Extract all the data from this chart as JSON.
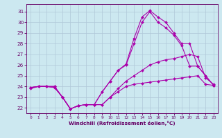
{
  "xlabel": "Windchill (Refroidissement éolien,°C)",
  "background_color": "#cce8f0",
  "grid_color": "#b0c8d8",
  "line_color": "#aa00aa",
  "xlim": [
    -0.5,
    23.5
  ],
  "ylim": [
    21.5,
    31.7
  ],
  "yticks": [
    22,
    23,
    24,
    25,
    26,
    27,
    28,
    29,
    30,
    31
  ],
  "xticks": [
    0,
    1,
    2,
    3,
    4,
    5,
    6,
    7,
    8,
    9,
    10,
    11,
    12,
    13,
    14,
    15,
    16,
    17,
    18,
    19,
    20,
    21,
    22,
    23
  ],
  "series": [
    {
      "x": [
        0,
        1,
        2,
        3,
        4,
        5,
        6,
        7,
        8,
        9,
        10,
        11,
        12,
        13,
        14,
        15,
        16,
        17,
        18,
        19,
        20,
        21,
        22,
        23
      ],
      "y": [
        23.9,
        24.0,
        24.0,
        23.9,
        23.0,
        21.9,
        22.2,
        22.3,
        22.3,
        22.3,
        23.0,
        23.5,
        24.0,
        24.2,
        24.3,
        24.4,
        24.5,
        24.6,
        24.7,
        24.8,
        24.9,
        25.0,
        24.2,
        24.1
      ]
    },
    {
      "x": [
        0,
        1,
        2,
        3,
        4,
        5,
        6,
        7,
        8,
        9,
        10,
        11,
        12,
        13,
        14,
        15,
        16,
        17,
        18,
        19,
        20,
        21,
        22,
        23
      ],
      "y": [
        23.9,
        24.0,
        24.0,
        23.9,
        23.0,
        21.9,
        22.2,
        22.3,
        22.3,
        22.3,
        23.0,
        23.8,
        24.5,
        25.0,
        25.5,
        26.0,
        26.3,
        26.5,
        26.6,
        26.8,
        27.0,
        26.8,
        24.8,
        24.2
      ]
    },
    {
      "x": [
        0,
        1,
        2,
        3,
        4,
        5,
        6,
        7,
        8,
        9,
        10,
        11,
        12,
        13,
        14,
        15,
        16,
        17,
        18,
        19,
        20,
        21,
        22,
        23
      ],
      "y": [
        23.9,
        24.0,
        24.0,
        24.0,
        23.0,
        21.9,
        22.2,
        22.3,
        22.3,
        23.5,
        24.5,
        25.5,
        26.0,
        28.0,
        30.0,
        31.0,
        30.0,
        29.5,
        28.8,
        27.8,
        25.9,
        25.9,
        25.0,
        24.1
      ]
    },
    {
      "x": [
        0,
        1,
        2,
        3,
        4,
        5,
        6,
        7,
        8,
        9,
        10,
        11,
        12,
        13,
        14,
        15,
        16,
        17,
        18,
        19,
        20,
        21,
        22,
        23
      ],
      "y": [
        23.8,
        24.0,
        24.0,
        24.0,
        23.0,
        21.9,
        22.2,
        22.3,
        22.3,
        23.5,
        24.5,
        25.5,
        26.1,
        28.5,
        30.5,
        31.1,
        30.5,
        30.0,
        29.0,
        28.0,
        28.0,
        25.9,
        25.0,
        24.1
      ]
    }
  ]
}
